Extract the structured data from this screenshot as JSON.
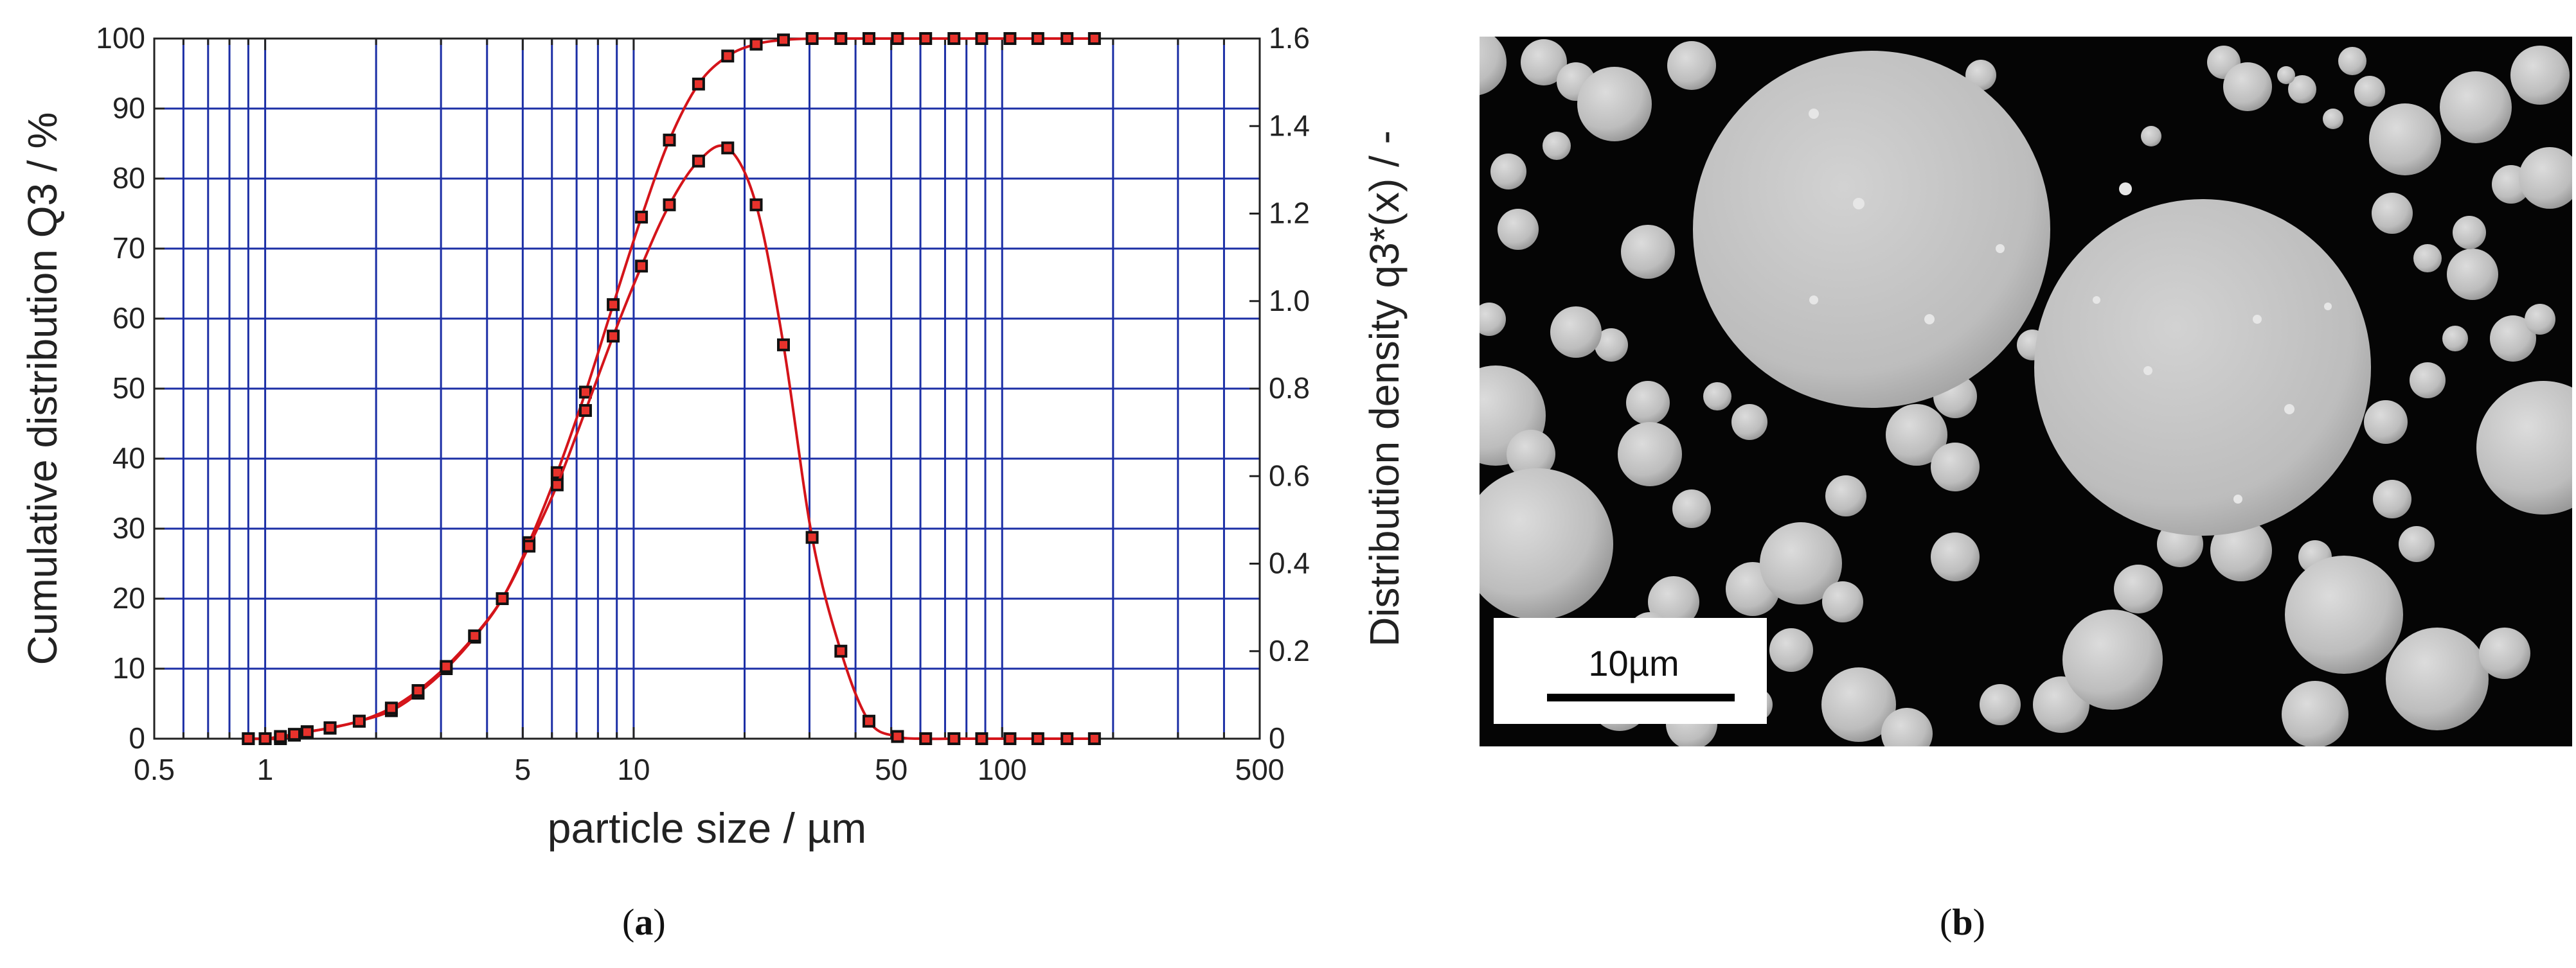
{
  "panels": {
    "a": {
      "paren_open": "(",
      "letter": "a",
      "paren_close": ")"
    },
    "b": {
      "paren_open": "(",
      "letter": "b",
      "paren_close": ")"
    }
  },
  "sem_image": {
    "scale_bar_label": "10µm"
  },
  "colors": {
    "grid": "#1c2fa6",
    "curve": "#d4141a",
    "marker_fill": "#e8322c",
    "marker_edge": "#111111",
    "axis": "#222222",
    "sem_background": "#050505",
    "particle": "#c4c4c4"
  },
  "chart_data": {
    "type": "line",
    "xscale": "log",
    "xlabel": "particle size / µm",
    "ylabel_left": "Cumulative distribution Q3 / %",
    "ylabel_right": "Distribution density q3*(x) / -",
    "xlim": [
      0.5,
      500
    ],
    "ylim_left": [
      0,
      100
    ],
    "ylim_right": [
      0,
      1.6
    ],
    "x_ticks": [
      0.5,
      1,
      5,
      10,
      50,
      100,
      500
    ],
    "x_tick_labels": [
      "0.5",
      "1",
      "5",
      "10",
      "50",
      "100",
      "500"
    ],
    "y_ticks_left": [
      0,
      10,
      20,
      30,
      40,
      50,
      60,
      70,
      80,
      90,
      100
    ],
    "y_tick_labels_left": [
      "0",
      "10",
      "20",
      "30",
      "40",
      "50",
      "60",
      "70",
      "80",
      "90",
      "100"
    ],
    "y_ticks_right": [
      0,
      0.2,
      0.4,
      0.6,
      0.8,
      1.0,
      1.2,
      1.4,
      1.6
    ],
    "y_tick_labels_right": [
      "0",
      "0.2",
      "0.4",
      "0.6",
      "0.8",
      "1.0",
      "1.2",
      "1.4",
      "1.6"
    ],
    "grid": true,
    "series": [
      {
        "name": "Cumulative distribution Q3",
        "axis": "left",
        "x": [
          0.9,
          1.0,
          1.1,
          1.2,
          1.3,
          1.5,
          1.8,
          2.2,
          2.6,
          3.1,
          3.7,
          4.4,
          5.2,
          6.2,
          7.4,
          8.8,
          10.5,
          12.5,
          15,
          18,
          21.5,
          25.5,
          30.5,
          36.5,
          43.5,
          52,
          62,
          74,
          88,
          105,
          125,
          150,
          178
        ],
        "y": [
          0,
          0,
          0,
          0.5,
          1,
          1.5,
          2.5,
          4,
          6.5,
          10,
          14.5,
          20,
          28,
          38,
          49.5,
          62,
          74.5,
          85.5,
          93.5,
          97.5,
          99.2,
          99.8,
          100,
          100,
          100,
          100,
          100,
          100,
          100,
          100,
          100,
          100,
          100
        ]
      },
      {
        "name": "Distribution density q3*(x)",
        "axis": "right",
        "x": [
          0.9,
          1.0,
          1.1,
          1.2,
          1.3,
          1.5,
          1.8,
          2.2,
          2.6,
          3.1,
          3.7,
          4.4,
          5.2,
          6.2,
          7.4,
          8.8,
          10.5,
          12.5,
          15,
          18,
          21.5,
          25.5,
          30.5,
          36.5,
          43.5,
          52,
          62,
          74,
          88,
          105,
          125,
          150,
          178
        ],
        "y": [
          0,
          0,
          0.005,
          0.01,
          0.015,
          0.025,
          0.04,
          0.07,
          0.11,
          0.165,
          0.235,
          0.32,
          0.44,
          0.58,
          0.75,
          0.92,
          1.08,
          1.22,
          1.32,
          1.35,
          1.22,
          0.9,
          0.46,
          0.2,
          0.04,
          0.005,
          0,
          0,
          0,
          0,
          0,
          0,
          0
        ]
      }
    ]
  }
}
